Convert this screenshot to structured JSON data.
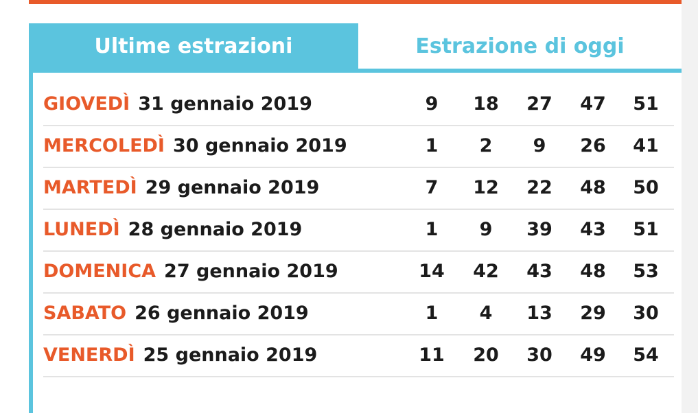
{
  "tabs": {
    "recent_label": "Ultime estrazioni",
    "today_label": "Estrazione di oggi"
  },
  "colors": {
    "accent_blue": "#5bc4de",
    "accent_orange": "#e85a2a",
    "text_dark": "#1b1b1b"
  },
  "draws": [
    {
      "weekday": "GIOVEDÌ",
      "date": "31 gennaio 2019",
      "numbers": [
        "9",
        "18",
        "27",
        "47",
        "51"
      ]
    },
    {
      "weekday": "MERCOLEDÌ",
      "date": "30 gennaio 2019",
      "numbers": [
        "1",
        "2",
        "9",
        "26",
        "41"
      ]
    },
    {
      "weekday": "MARTEDÌ",
      "date": "29 gennaio 2019",
      "numbers": [
        "7",
        "12",
        "22",
        "48",
        "50"
      ]
    },
    {
      "weekday": "LUNEDÌ",
      "date": "28 gennaio 2019",
      "numbers": [
        "1",
        "9",
        "39",
        "43",
        "51"
      ]
    },
    {
      "weekday": "DOMENICA",
      "date": "27 gennaio 2019",
      "numbers": [
        "14",
        "42",
        "43",
        "48",
        "53"
      ]
    },
    {
      "weekday": "SABATO",
      "date": "26 gennaio 2019",
      "numbers": [
        "1",
        "4",
        "13",
        "29",
        "30"
      ]
    },
    {
      "weekday": "VENERDÌ",
      "date": "25 gennaio 2019",
      "numbers": [
        "11",
        "20",
        "30",
        "49",
        "54"
      ]
    }
  ]
}
